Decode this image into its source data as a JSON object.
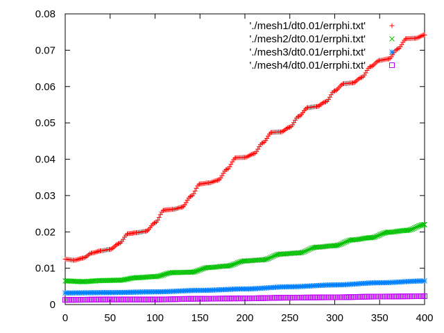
{
  "chart_data": {
    "type": "scatter",
    "title": "",
    "xlabel": "",
    "ylabel": "",
    "xlim": [
      0,
      400
    ],
    "ylim": [
      0,
      0.08
    ],
    "x_ticks": [
      "0",
      "50",
      "100",
      "150",
      "200",
      "250",
      "300",
      "350",
      "400"
    ],
    "y_ticks": [
      "0",
      "0.01",
      "0.02",
      "0.03",
      "0.04",
      "0.05",
      "0.06",
      "0.07",
      "0.08"
    ],
    "grid": false,
    "legend_position": "top-right",
    "series": [
      {
        "name": "'./mesh1/dt0.01/errphi.txt'",
        "marker": "plus",
        "color": "#ff0000",
        "x": [
          0,
          10,
          20,
          30,
          40,
          50,
          60,
          70,
          80,
          90,
          100,
          110,
          120,
          130,
          140,
          150,
          160,
          170,
          180,
          190,
          200,
          210,
          220,
          230,
          240,
          250,
          260,
          270,
          280,
          290,
          300,
          310,
          320,
          330,
          340,
          350,
          360,
          370,
          380,
          390,
          400
        ],
        "y": [
          0.0125,
          0.0122,
          0.0128,
          0.0142,
          0.0148,
          0.0152,
          0.0168,
          0.0195,
          0.0198,
          0.0202,
          0.0225,
          0.026,
          0.0262,
          0.0268,
          0.0298,
          0.0332,
          0.0335,
          0.0342,
          0.0372,
          0.0404,
          0.0405,
          0.0415,
          0.0445,
          0.0474,
          0.0475,
          0.0488,
          0.0518,
          0.0542,
          0.0545,
          0.0558,
          0.0588,
          0.0608,
          0.061,
          0.0625,
          0.0655,
          0.0672,
          0.0676,
          0.0703,
          0.0732,
          0.0733,
          0.0742
        ]
      },
      {
        "name": "'./mesh2/dt0.01/errphi.txt'",
        "marker": "cross",
        "color": "#00c000",
        "x": [
          0,
          20,
          40,
          60,
          80,
          100,
          120,
          140,
          160,
          180,
          200,
          220,
          240,
          260,
          280,
          300,
          320,
          340,
          360,
          380,
          400
        ],
        "y": [
          0.0065,
          0.0063,
          0.0066,
          0.0067,
          0.0074,
          0.0077,
          0.0088,
          0.0089,
          0.0102,
          0.0106,
          0.012,
          0.0123,
          0.0139,
          0.0142,
          0.0158,
          0.0162,
          0.0178,
          0.0184,
          0.0199,
          0.0204,
          0.022
        ]
      },
      {
        "name": "'./mesh3/dt0.01/errphi.txt'",
        "marker": "star",
        "color": "#0080ff",
        "x": [
          0,
          50,
          100,
          150,
          200,
          250,
          300,
          350,
          400
        ],
        "y": [
          0.0032,
          0.0033,
          0.0035,
          0.0039,
          0.0043,
          0.0049,
          0.0054,
          0.006,
          0.0065
        ]
      },
      {
        "name": "'./mesh4/dt0.01/errphi.txt'",
        "marker": "square",
        "color": "#c000ff",
        "x": [
          0,
          50,
          100,
          150,
          200,
          250,
          300,
          350,
          400
        ],
        "y": [
          0.0013,
          0.0014,
          0.0014,
          0.0016,
          0.0017,
          0.0019,
          0.002,
          0.0022,
          0.0023
        ]
      }
    ]
  }
}
